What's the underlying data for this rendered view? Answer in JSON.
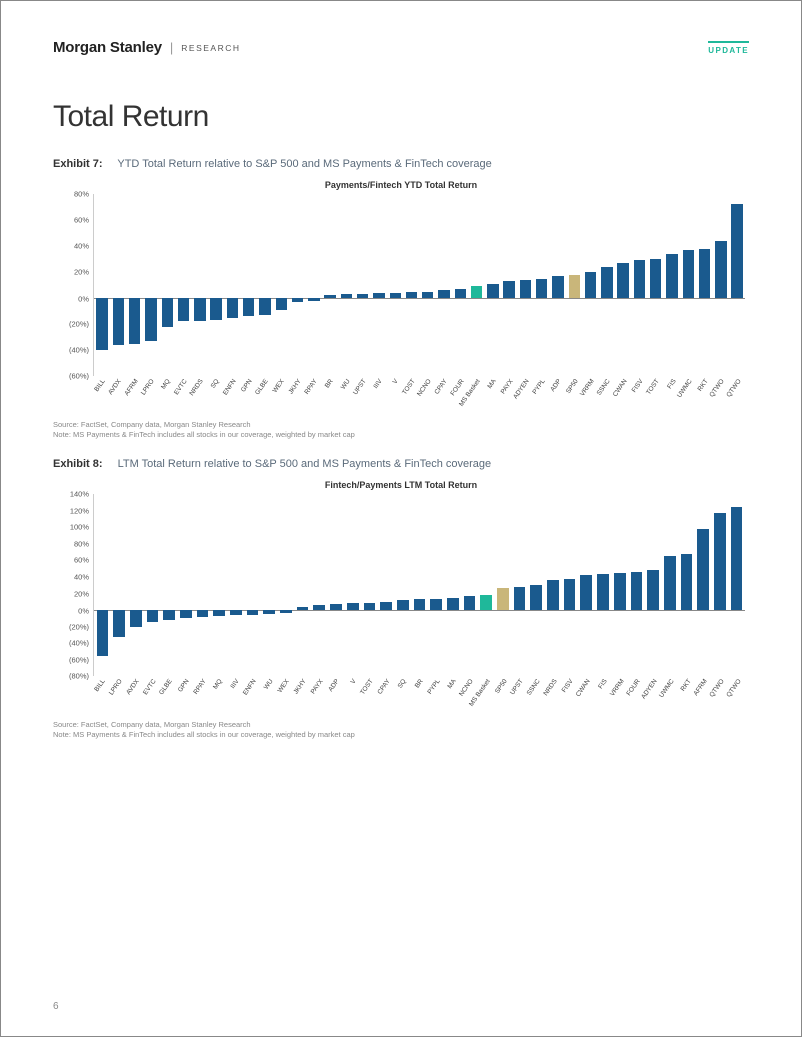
{
  "header": {
    "brand": "Morgan Stanley",
    "research": "RESEARCH",
    "update_label": "UPDATE"
  },
  "page_title": "Total Return",
  "page_number": "6",
  "colors": {
    "bar_default": "#1a5a8e",
    "bar_highlight_green": "#1fb89a",
    "bar_highlight_tan": "#c9b67a",
    "axis": "#cccccc",
    "zero_line": "#888888",
    "text": "#333333",
    "accent": "#1fb89a"
  },
  "exhibit7": {
    "label_num": "Exhibit 7:",
    "label_desc": "YTD Total Return relative to S&P 500 and MS Payments & FinTech coverage",
    "chart_title": "Payments/Fintech YTD Total Return",
    "type": "bar",
    "ymin": -60,
    "ymax": 80,
    "ytick_step": 20,
    "yticks": [
      {
        "v": 80,
        "l": "80%"
      },
      {
        "v": 60,
        "l": "60%"
      },
      {
        "v": 40,
        "l": "40%"
      },
      {
        "v": 20,
        "l": "20%"
      },
      {
        "v": 0,
        "l": "0%"
      },
      {
        "v": -20,
        "l": "(20%)"
      },
      {
        "v": -40,
        "l": "(40%)"
      },
      {
        "v": -60,
        "l": "(60%)"
      }
    ],
    "bars": [
      {
        "l": "BILL",
        "v": -40,
        "c": "#1a5a8e"
      },
      {
        "l": "AVDX",
        "v": -36,
        "c": "#1a5a8e"
      },
      {
        "l": "AFRM",
        "v": -35,
        "c": "#1a5a8e"
      },
      {
        "l": "LPRO",
        "v": -33,
        "c": "#1a5a8e"
      },
      {
        "l": "MQ",
        "v": -22,
        "c": "#1a5a8e"
      },
      {
        "l": "EVTC",
        "v": -18,
        "c": "#1a5a8e"
      },
      {
        "l": "NRDS",
        "v": -18,
        "c": "#1a5a8e"
      },
      {
        "l": "SQ",
        "v": -17,
        "c": "#1a5a8e"
      },
      {
        "l": "ENFN",
        "v": -15,
        "c": "#1a5a8e"
      },
      {
        "l": "GPN",
        "v": -14,
        "c": "#1a5a8e"
      },
      {
        "l": "GLBE",
        "v": -13,
        "c": "#1a5a8e"
      },
      {
        "l": "WEX",
        "v": -9,
        "c": "#1a5a8e"
      },
      {
        "l": "JKHY",
        "v": -3,
        "c": "#1a5a8e"
      },
      {
        "l": "RPAY",
        "v": -2,
        "c": "#1a5a8e"
      },
      {
        "l": "BR",
        "v": 2,
        "c": "#1a5a8e"
      },
      {
        "l": "WU",
        "v": 3,
        "c": "#1a5a8e"
      },
      {
        "l": "UPST",
        "v": 3,
        "c": "#1a5a8e"
      },
      {
        "l": "IIIV",
        "v": 4,
        "c": "#1a5a8e"
      },
      {
        "l": "V",
        "v": 4,
        "c": "#1a5a8e"
      },
      {
        "l": "TOST",
        "v": 5,
        "c": "#1a5a8e"
      },
      {
        "l": "NCNO",
        "v": 5,
        "c": "#1a5a8e"
      },
      {
        "l": "CPAY",
        "v": 6,
        "c": "#1a5a8e"
      },
      {
        "l": "FOUR",
        "v": 7,
        "c": "#1a5a8e"
      },
      {
        "l": "MS Basket",
        "v": 9,
        "c": "#1fb89a"
      },
      {
        "l": "MA",
        "v": 11,
        "c": "#1a5a8e"
      },
      {
        "l": "PAYX",
        "v": 13,
        "c": "#1a5a8e"
      },
      {
        "l": "ADYEN",
        "v": 14,
        "c": "#1a5a8e"
      },
      {
        "l": "PYPL",
        "v": 15,
        "c": "#1a5a8e"
      },
      {
        "l": "ADP",
        "v": 17,
        "c": "#1a5a8e"
      },
      {
        "l": "SP50",
        "v": 18,
        "c": "#c9b67a"
      },
      {
        "l": "VRRM",
        "v": 20,
        "c": "#1a5a8e"
      },
      {
        "l": "SSNC",
        "v": 24,
        "c": "#1a5a8e"
      },
      {
        "l": "CWAN",
        "v": 27,
        "c": "#1a5a8e"
      },
      {
        "l": "FISV",
        "v": 29,
        "c": "#1a5a8e"
      },
      {
        "l": "TOST",
        "v": 30,
        "c": "#1a5a8e"
      },
      {
        "l": "FIS",
        "v": 34,
        "c": "#1a5a8e"
      },
      {
        "l": "UWMC",
        "v": 37,
        "c": "#1a5a8e"
      },
      {
        "l": "RKT",
        "v": 38,
        "c": "#1a5a8e"
      },
      {
        "l": "QTWO",
        "v": 44,
        "c": "#1a5a8e"
      },
      {
        "l": "QTWO",
        "v": 72,
        "c": "#1a5a8e"
      }
    ],
    "source": "Source: FactSet, Company data, Morgan Stanley Research",
    "note": "Note: MS Payments & FinTech includes all stocks in our coverage, weighted by market cap"
  },
  "exhibit8": {
    "label_num": "Exhibit 8:",
    "label_desc": "LTM Total Return relative to S&P 500 and MS Payments & FinTech coverage",
    "chart_title": "Fintech/Payments LTM Total Return",
    "type": "bar",
    "ymin": -80,
    "ymax": 140,
    "ytick_step": 20,
    "yticks": [
      {
        "v": 140,
        "l": "140%"
      },
      {
        "v": 120,
        "l": "120%"
      },
      {
        "v": 100,
        "l": "100%"
      },
      {
        "v": 80,
        "l": "80%"
      },
      {
        "v": 60,
        "l": "60%"
      },
      {
        "v": 40,
        "l": "40%"
      },
      {
        "v": 20,
        "l": "20%"
      },
      {
        "v": 0,
        "l": "0%"
      },
      {
        "v": -20,
        "l": "(20%)"
      },
      {
        "v": -40,
        "l": "(40%)"
      },
      {
        "v": -60,
        "l": "(60%)"
      },
      {
        "v": -80,
        "l": "(80%)"
      }
    ],
    "bars": [
      {
        "l": "BILL",
        "v": -55,
        "c": "#1a5a8e"
      },
      {
        "l": "LPRO",
        "v": -32,
        "c": "#1a5a8e"
      },
      {
        "l": "AVDX",
        "v": -20,
        "c": "#1a5a8e"
      },
      {
        "l": "EVTC",
        "v": -14,
        "c": "#1a5a8e"
      },
      {
        "l": "GLBE",
        "v": -12,
        "c": "#1a5a8e"
      },
      {
        "l": "GPN",
        "v": -10,
        "c": "#1a5a8e"
      },
      {
        "l": "RPAY",
        "v": -8,
        "c": "#1a5a8e"
      },
      {
        "l": "MQ",
        "v": -7,
        "c": "#1a5a8e"
      },
      {
        "l": "IIIV",
        "v": -6,
        "c": "#1a5a8e"
      },
      {
        "l": "ENFN",
        "v": -6,
        "c": "#1a5a8e"
      },
      {
        "l": "WU",
        "v": -5,
        "c": "#1a5a8e"
      },
      {
        "l": "WEX",
        "v": -3,
        "c": "#1a5a8e"
      },
      {
        "l": "JKHY",
        "v": 4,
        "c": "#1a5a8e"
      },
      {
        "l": "PAYX",
        "v": 6,
        "c": "#1a5a8e"
      },
      {
        "l": "ADP",
        "v": 7,
        "c": "#1a5a8e"
      },
      {
        "l": "V",
        "v": 8,
        "c": "#1a5a8e"
      },
      {
        "l": "TOST",
        "v": 9,
        "c": "#1a5a8e"
      },
      {
        "l": "CPAY",
        "v": 10,
        "c": "#1a5a8e"
      },
      {
        "l": "SQ",
        "v": 12,
        "c": "#1a5a8e"
      },
      {
        "l": "BR",
        "v": 13,
        "c": "#1a5a8e"
      },
      {
        "l": "PYPL",
        "v": 14,
        "c": "#1a5a8e"
      },
      {
        "l": "MA",
        "v": 15,
        "c": "#1a5a8e"
      },
      {
        "l": "NCNO",
        "v": 17,
        "c": "#1a5a8e"
      },
      {
        "l": "MS Basket",
        "v": 18,
        "c": "#1fb89a"
      },
      {
        "l": "SP50",
        "v": 27,
        "c": "#c9b67a"
      },
      {
        "l": "UPST",
        "v": 28,
        "c": "#1a5a8e"
      },
      {
        "l": "SSNC",
        "v": 30,
        "c": "#1a5a8e"
      },
      {
        "l": "NRDS",
        "v": 36,
        "c": "#1a5a8e"
      },
      {
        "l": "FISV",
        "v": 38,
        "c": "#1a5a8e"
      },
      {
        "l": "CWAN",
        "v": 42,
        "c": "#1a5a8e"
      },
      {
        "l": "FIS",
        "v": 44,
        "c": "#1a5a8e"
      },
      {
        "l": "VRRM",
        "v": 45,
        "c": "#1a5a8e"
      },
      {
        "l": "FOUR",
        "v": 46,
        "c": "#1a5a8e"
      },
      {
        "l": "ADYEN",
        "v": 48,
        "c": "#1a5a8e"
      },
      {
        "l": "UWMC",
        "v": 65,
        "c": "#1a5a8e"
      },
      {
        "l": "RKT",
        "v": 68,
        "c": "#1a5a8e"
      },
      {
        "l": "AFRM",
        "v": 98,
        "c": "#1a5a8e"
      },
      {
        "l": "QTWO",
        "v": 117,
        "c": "#1a5a8e"
      },
      {
        "l": "QTWO",
        "v": 125,
        "c": "#1a5a8e"
      }
    ],
    "source": "Source: FactSet, Company data, Morgan Stanley Research",
    "note": "Note: MS Payments & FinTech includes all stocks in our coverage, weighted by market cap"
  }
}
